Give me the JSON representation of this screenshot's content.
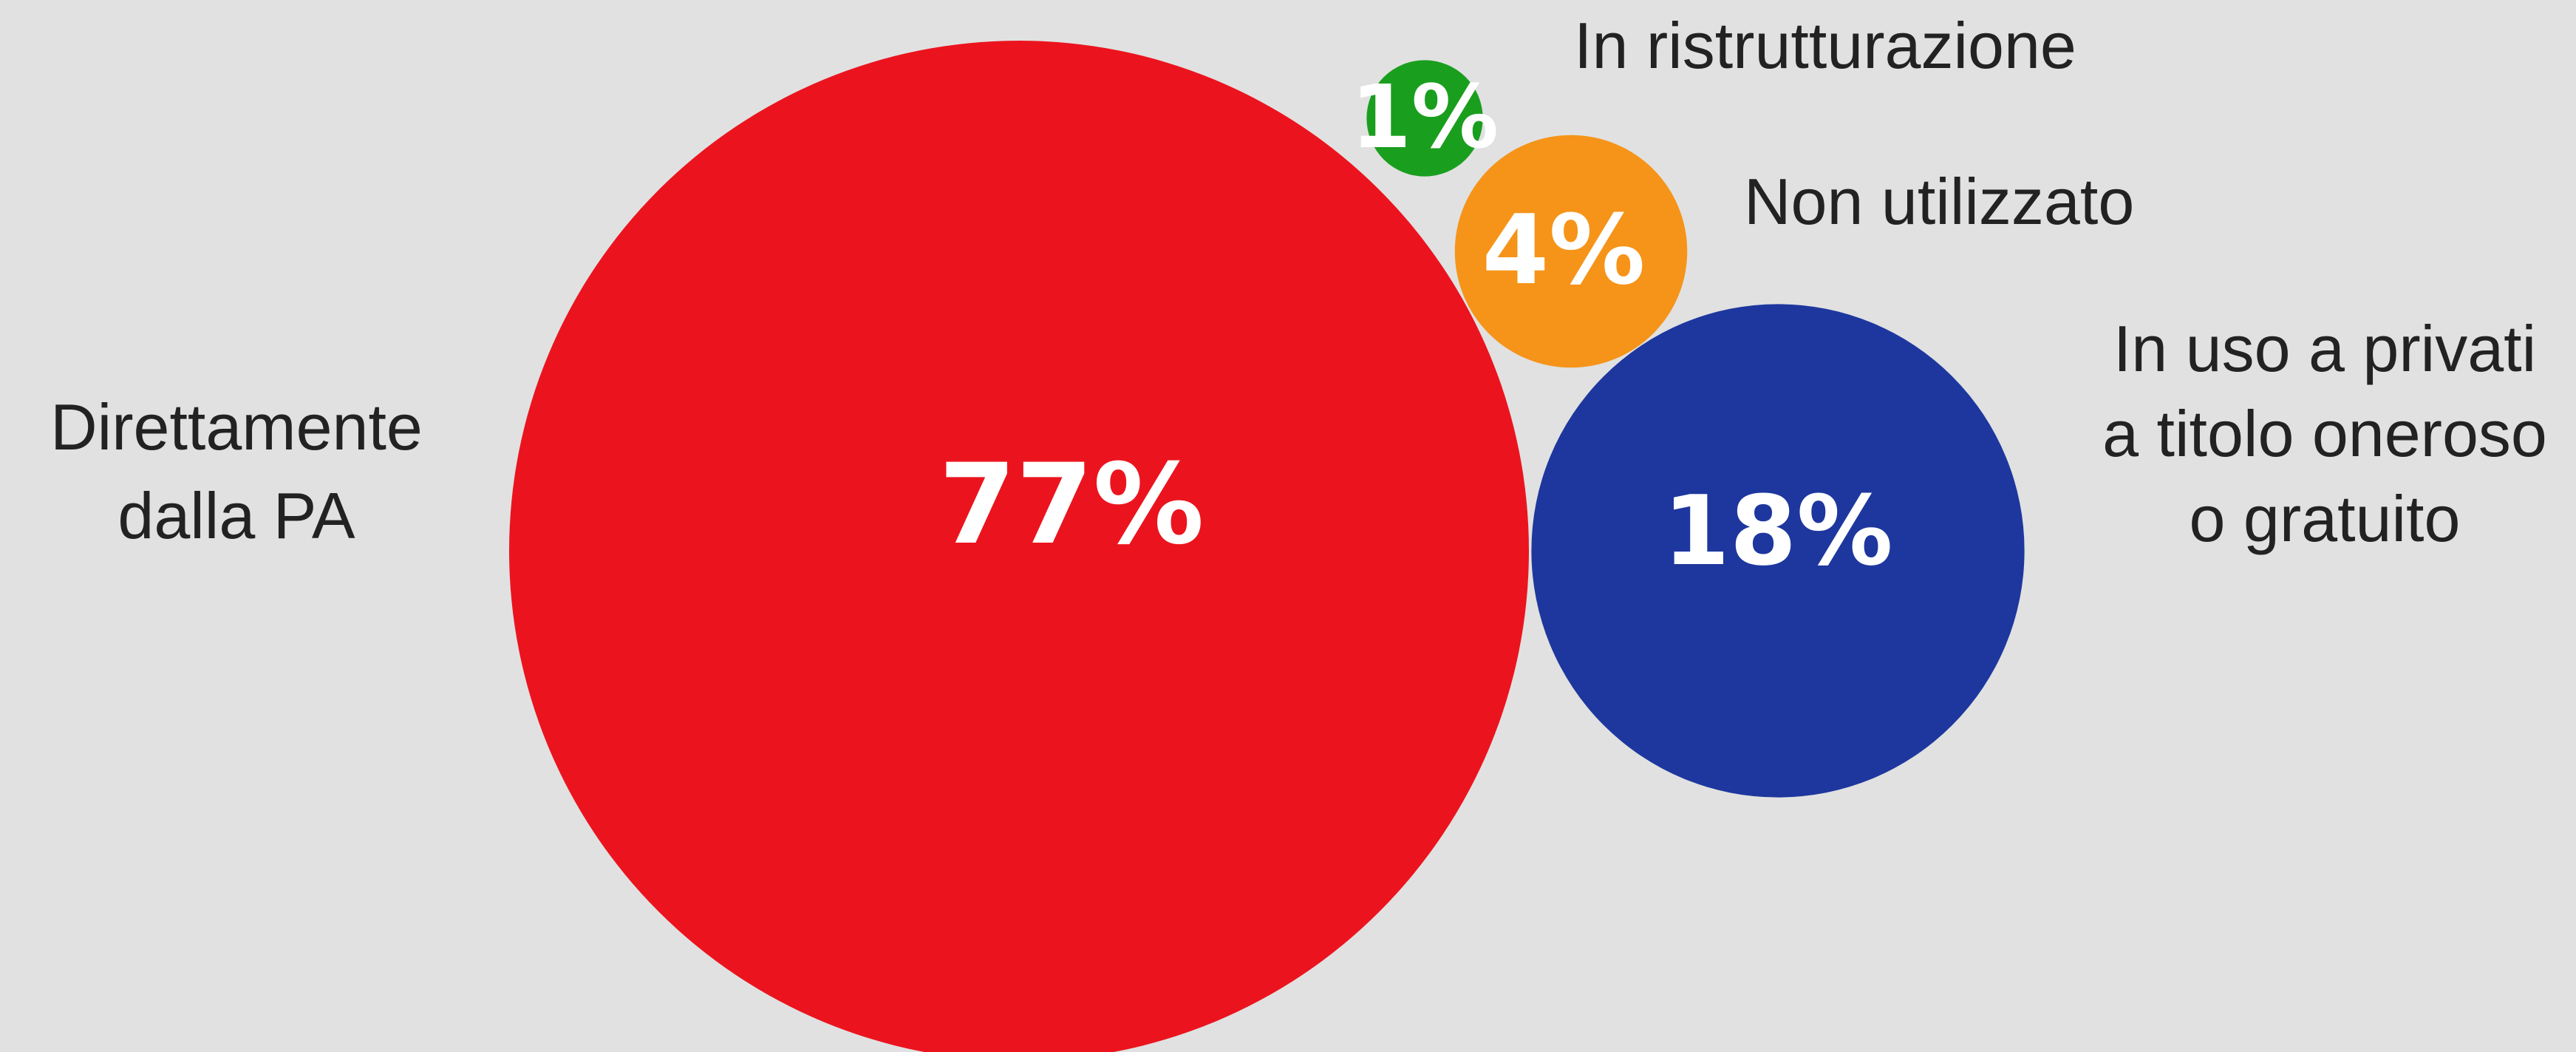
{
  "chart_data": {
    "type": "bubble",
    "title": "",
    "series": [
      {
        "category": "Direttamente dalla PA",
        "label_lines": [
          "Direttamente",
          "dalla PA"
        ],
        "value": 77,
        "value_label": "77%",
        "color": "#eb141e"
      },
      {
        "category": "In ristrutturazione",
        "label_lines": [
          "In ristrutturazione"
        ],
        "value": 1,
        "value_label": "1%",
        "color": "#1a9e1e"
      },
      {
        "category": "Non utilizzato",
        "label_lines": [
          "Non utilizzato"
        ],
        "value": 4,
        "value_label": "4%",
        "color": "#f59419"
      },
      {
        "category": "In uso a privati a titolo oneroso o gratuito",
        "label_lines": [
          "In uso a privati",
          "a titolo oneroso",
          "o gratuito"
        ],
        "value": 18,
        "value_label": "18%",
        "color": "#1e379e"
      }
    ]
  }
}
